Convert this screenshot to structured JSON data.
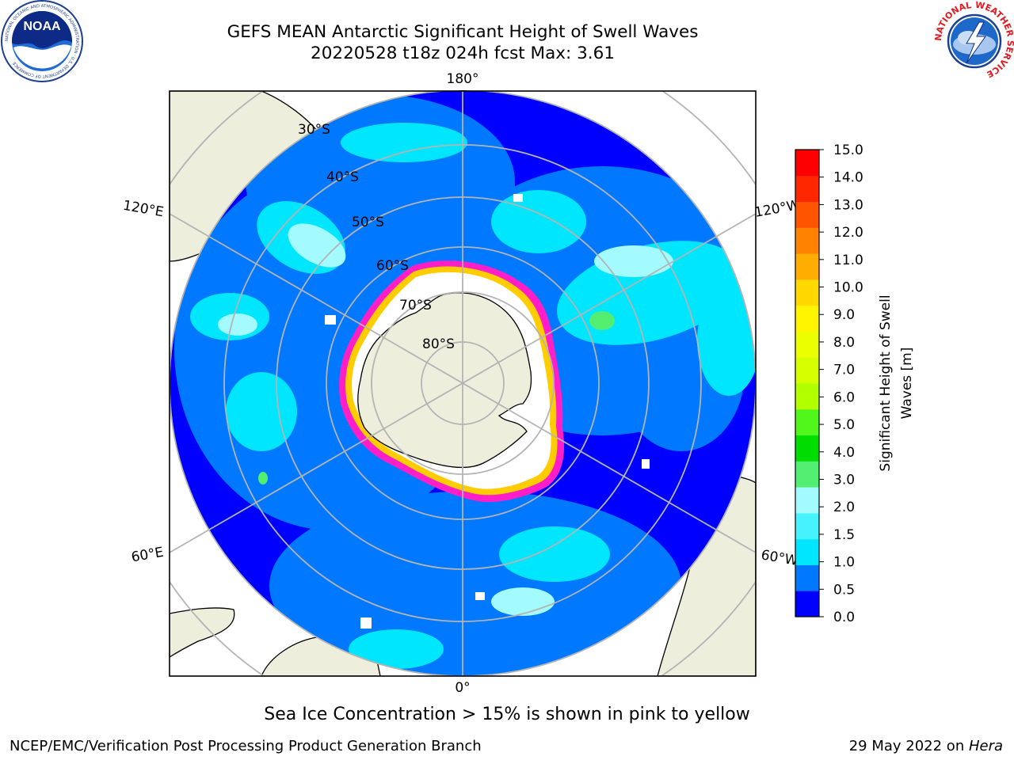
{
  "header": {
    "title_line1": "GEFS MEAN Antarctic Significant Height of Swell Waves",
    "title_line2": "20220528 t18z 024h fcst   Max: 3.61"
  },
  "logos": {
    "noaa_text": "NOAA",
    "noaa_ring_text": "NATIONAL OCEANIC AND ATMOSPHERIC ADMINISTRATION · U.S. DEPARTMENT OF COMMERCE",
    "nws_ring_text": "NATIONAL WEATHER SERVICE"
  },
  "map": {
    "projection": "south-polar-stereographic",
    "longitude_labels": [
      "180°",
      "120°E",
      "120°W",
      "60°E",
      "60°W",
      "0°"
    ],
    "latitude_labels": [
      "30°S",
      "40°S",
      "50°S",
      "60°S",
      "70°S",
      "80°S"
    ]
  },
  "colorbar": {
    "label_line1": "Significant Height of Swell",
    "label_line2": "Waves [m]",
    "ticks": [
      "15.0",
      "14.0",
      "13.0",
      "12.0",
      "11.0",
      "10.0",
      "9.0",
      "8.0",
      "7.0",
      "6.0",
      "5.0",
      "4.0",
      "3.0",
      "2.0",
      "1.5",
      "1.0",
      "0.5",
      "0.0"
    ],
    "colors_bottom_to_top": [
      "#0000ff",
      "#0078ff",
      "#00e6ff",
      "#47f2ff",
      "#a3fbff",
      "#52ee72",
      "#00dd00",
      "#51f61a",
      "#b2ff00",
      "#d6ff00",
      "#ecff00",
      "#fff500",
      "#ffd900",
      "#ffad00",
      "#ff8300",
      "#ff5400",
      "#ff2700",
      "#ff0000"
    ]
  },
  "colors": {
    "land": "#eeeedc",
    "ice_edge_pink": "#ff1ec8",
    "ice_edge_yellow": "#ffcc00",
    "graticule": "#b4b4b4"
  },
  "note": "Sea Ice Concentration > 15% is shown in pink to yellow",
  "footer": {
    "left": "NCEP/EMC/Verification Post Processing Product Generation Branch",
    "right_date": "29 May 2022 on ",
    "right_host": "Hera"
  }
}
